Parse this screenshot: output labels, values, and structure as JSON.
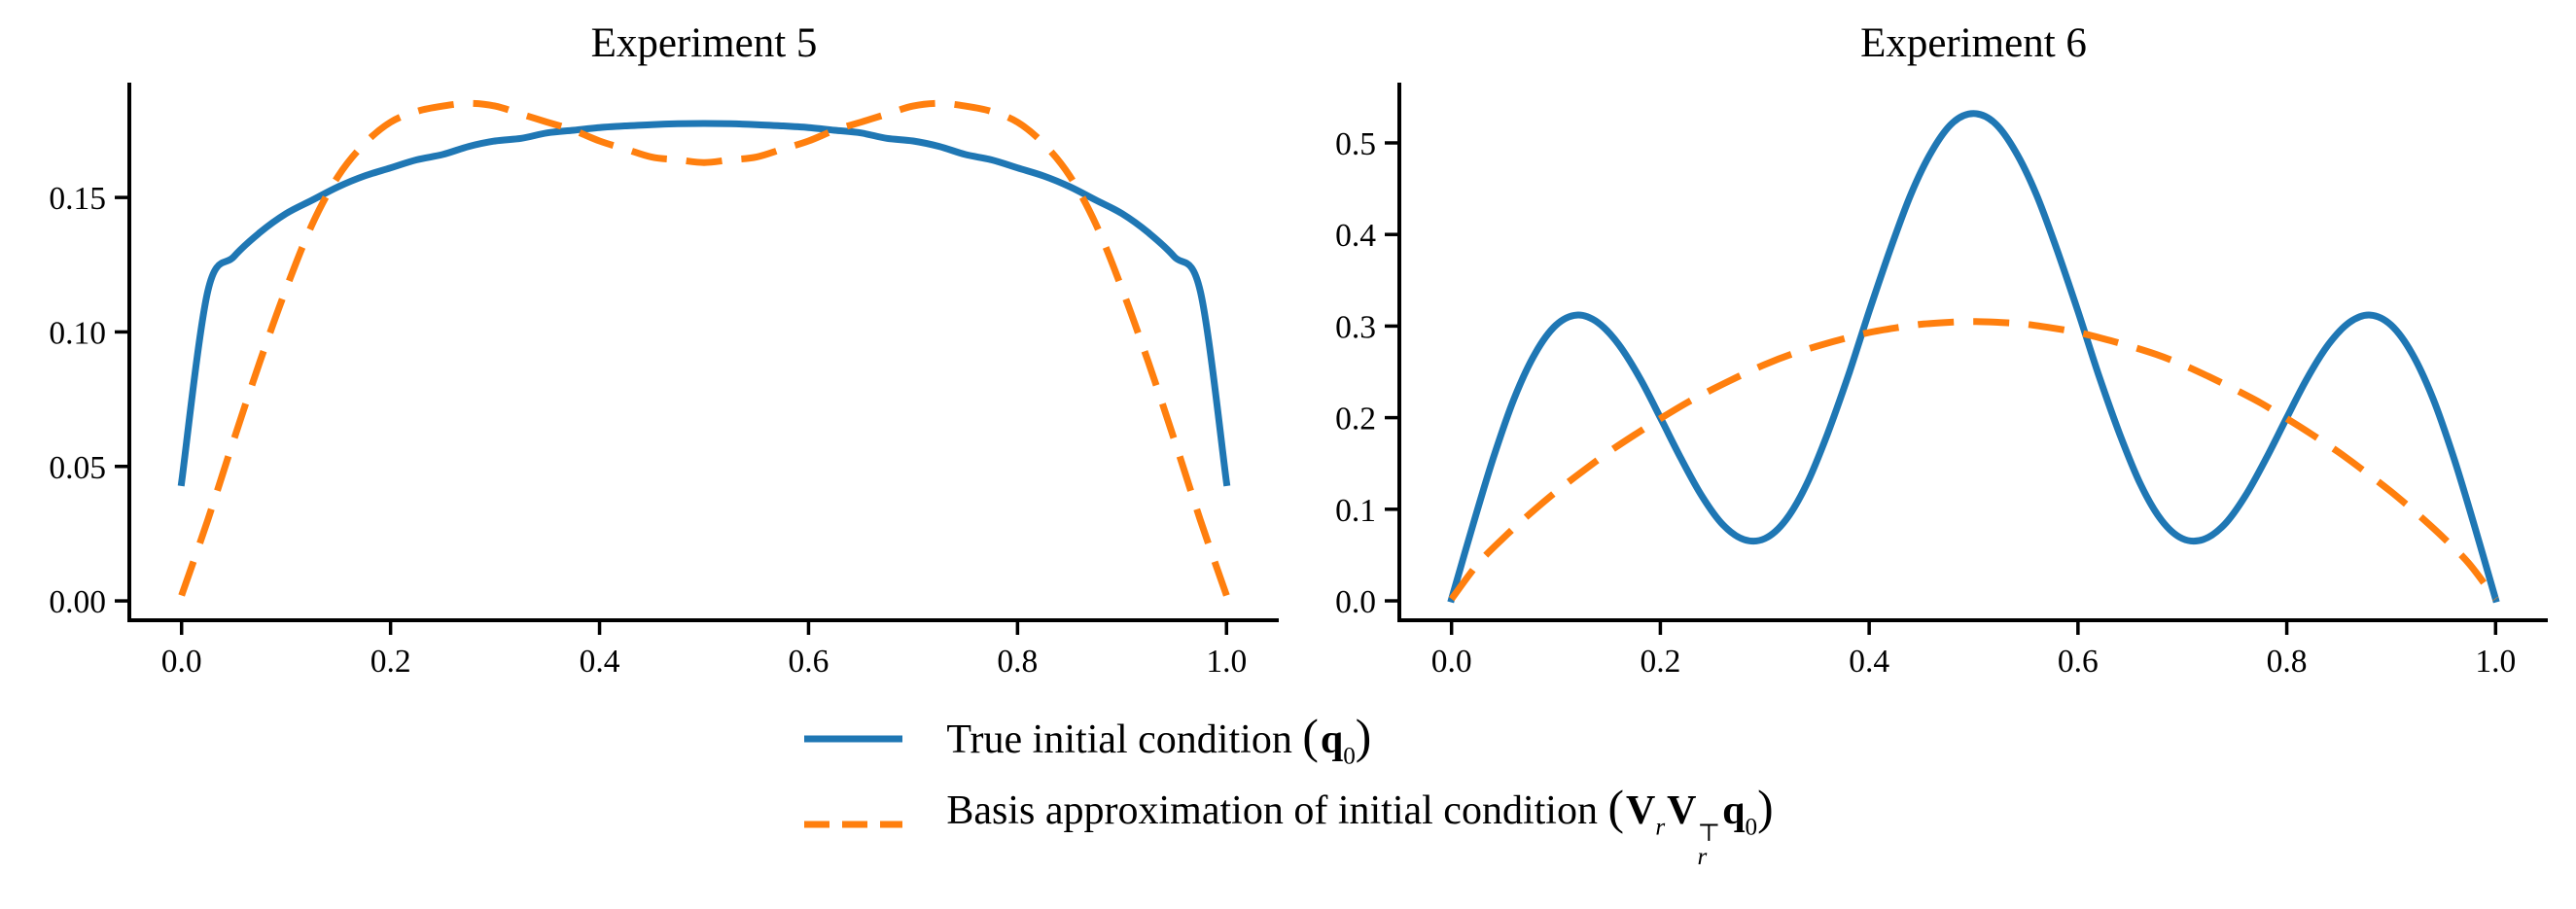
{
  "background": "#ffffff",
  "colors": {
    "true_line": "#1f77b4",
    "basis_line": "#ff7f0e",
    "axis": "#000000",
    "text": "#000000"
  },
  "legend": {
    "items": [
      {
        "id": "true-initial-condition",
        "line_style": "solid",
        "color": "#1f77b4",
        "text_prefix": "True initial condition ",
        "open_paren": "(",
        "close_paren": ")",
        "terms": [
          {
            "base": "q",
            "sub": "0"
          }
        ]
      },
      {
        "id": "basis-approximation",
        "line_style": "dashed",
        "color": "#ff7f0e",
        "text_prefix": "Basis approximation of initial condition ",
        "open_paren": "(",
        "close_paren": ")",
        "terms": [
          {
            "base": "V",
            "sub": "r"
          },
          {
            "base": "V",
            "sub": "r",
            "sup": "⊤"
          },
          {
            "base": "q",
            "sub": "0"
          }
        ]
      }
    ]
  },
  "chart_data": [
    {
      "type": "line",
      "title": "Experiment 5",
      "xlabel": "",
      "ylabel": "",
      "grid": false,
      "xlim": [
        -0.05,
        1.05
      ],
      "ylim": [
        -0.0072,
        0.1927
      ],
      "xtick_vals": [
        0.0,
        0.2,
        0.4,
        0.6,
        0.8,
        1.0
      ],
      "xtick_labels": [
        "0.0",
        "0.2",
        "0.4",
        "0.6",
        "0.8",
        "1.0"
      ],
      "ytick_vals": [
        0.0,
        0.05,
        0.1,
        0.15
      ],
      "ytick_labels": [
        "0.00",
        "0.05",
        "0.10",
        "0.15"
      ],
      "series": [
        {
          "name": "True initial condition (q0)",
          "color": "#1f77b4",
          "style": "solid",
          "x": [
            0,
            0.025,
            0.05,
            0.075,
            0.1,
            0.125,
            0.15,
            0.175,
            0.2,
            0.225,
            0.25,
            0.275,
            0.3,
            0.325,
            0.35,
            0.375,
            0.4,
            0.425,
            0.45,
            0.475,
            0.5,
            0.525,
            0.55,
            0.575,
            0.6,
            0.625,
            0.65,
            0.675,
            0.7,
            0.725,
            0.75,
            0.775,
            0.8,
            0.825,
            0.85,
            0.875,
            0.9,
            0.925,
            0.95,
            0.975,
            1
          ],
          "y": [
            0.044,
            0.115,
            0.128,
            0.137,
            0.144,
            0.149,
            0.154,
            0.158,
            0.161,
            0.164,
            0.166,
            0.169,
            0.171,
            0.172,
            0.174,
            0.175,
            0.176,
            0.1766,
            0.1771,
            0.1774,
            0.1775,
            0.1774,
            0.1771,
            0.1766,
            0.176,
            0.175,
            0.174,
            0.172,
            0.171,
            0.169,
            0.166,
            0.164,
            0.161,
            0.158,
            0.154,
            0.149,
            0.144,
            0.137,
            0.128,
            0.115,
            0.044
          ]
        },
        {
          "name": "Basis approximation of initial condition (Vr Vr^T q0)",
          "color": "#ff7f0e",
          "style": "dashed",
          "x": [
            0,
            0.025,
            0.05,
            0.075,
            0.1,
            0.125,
            0.15,
            0.175,
            0.2,
            0.225,
            0.25,
            0.275,
            0.3,
            0.325,
            0.35,
            0.375,
            0.4,
            0.425,
            0.45,
            0.475,
            0.5,
            0.525,
            0.55,
            0.575,
            0.6,
            0.625,
            0.65,
            0.675,
            0.7,
            0.725,
            0.75,
            0.775,
            0.8,
            0.825,
            0.85,
            0.875,
            0.9,
            0.925,
            0.95,
            0.975,
            1
          ],
          "y": [
            0.002,
            0.03,
            0.06,
            0.089,
            0.116,
            0.14,
            0.158,
            0.17,
            0.178,
            0.182,
            0.184,
            0.185,
            0.184,
            0.181,
            0.178,
            0.175,
            0.171,
            0.168,
            0.165,
            0.164,
            0.163,
            0.164,
            0.165,
            0.168,
            0.171,
            0.175,
            0.178,
            0.181,
            0.184,
            0.185,
            0.184,
            0.182,
            0.178,
            0.17,
            0.158,
            0.14,
            0.116,
            0.089,
            0.06,
            0.03,
            0.002
          ]
        }
      ]
    },
    {
      "type": "line",
      "title": "Experiment 6",
      "xlabel": "",
      "ylabel": "",
      "grid": false,
      "xlim": [
        -0.05,
        1.05
      ],
      "ylim": [
        -0.0212,
        0.5658
      ],
      "xtick_vals": [
        0.0,
        0.2,
        0.4,
        0.6,
        0.8,
        1.0
      ],
      "xtick_labels": [
        "0.0",
        "0.2",
        "0.4",
        "0.6",
        "0.8",
        "1.0"
      ],
      "ytick_vals": [
        0.0,
        0.1,
        0.2,
        0.3,
        0.4,
        0.5
      ],
      "ytick_labels": [
        "0.0",
        "0.1",
        "0.2",
        "0.3",
        "0.4",
        "0.5"
      ],
      "series": [
        {
          "name": "True initial condition (q0)",
          "color": "#1f77b4",
          "style": "solid",
          "x": [
            0,
            0.02,
            0.04,
            0.06,
            0.08,
            0.1,
            0.12,
            0.14,
            0.16,
            0.18,
            0.2,
            0.22,
            0.24,
            0.26,
            0.28,
            0.3,
            0.32,
            0.34,
            0.36,
            0.38,
            0.4,
            0.42,
            0.44,
            0.46,
            0.48,
            0.5,
            0.52,
            0.54,
            0.56,
            0.58,
            0.6,
            0.62,
            0.64,
            0.66,
            0.68,
            0.7,
            0.72,
            0.74,
            0.76,
            0.78,
            0.8,
            0.82,
            0.84,
            0.86,
            0.88,
            0.9,
            0.92,
            0.94,
            0.96,
            0.98,
            1
          ],
          "y": [
            0.002,
            0.081,
            0.156,
            0.221,
            0.27,
            0.301,
            0.312,
            0.304,
            0.28,
            0.244,
            0.2,
            0.155,
            0.114,
            0.083,
            0.067,
            0.068,
            0.088,
            0.127,
            0.182,
            0.246,
            0.316,
            0.383,
            0.444,
            0.491,
            0.522,
            0.532,
            0.522,
            0.491,
            0.444,
            0.383,
            0.316,
            0.246,
            0.182,
            0.127,
            0.088,
            0.068,
            0.067,
            0.083,
            0.114,
            0.155,
            0.2,
            0.244,
            0.28,
            0.304,
            0.312,
            0.301,
            0.27,
            0.221,
            0.156,
            0.081,
            0.002
          ]
        },
        {
          "name": "Basis approximation of initial condition (Vr Vr^T q0)",
          "color": "#ff7f0e",
          "style": "dashed",
          "x": [
            0,
            0.025,
            0.05,
            0.075,
            0.1,
            0.125,
            0.15,
            0.175,
            0.2,
            0.225,
            0.25,
            0.275,
            0.3,
            0.325,
            0.35,
            0.375,
            0.4,
            0.425,
            0.45,
            0.475,
            0.5,
            0.525,
            0.55,
            0.575,
            0.6,
            0.625,
            0.65,
            0.675,
            0.7,
            0.725,
            0.75,
            0.775,
            0.8,
            0.825,
            0.85,
            0.875,
            0.9,
            0.925,
            0.95,
            0.975,
            1
          ],
          "y": [
            0.002,
            0.04,
            0.069,
            0.095,
            0.119,
            0.141,
            0.162,
            0.181,
            0.199,
            0.216,
            0.231,
            0.245,
            0.258,
            0.269,
            0.278,
            0.286,
            0.293,
            0.298,
            0.302,
            0.304,
            0.305,
            0.304,
            0.302,
            0.298,
            0.293,
            0.286,
            0.278,
            0.269,
            0.258,
            0.245,
            0.231,
            0.216,
            0.199,
            0.181,
            0.162,
            0.141,
            0.119,
            0.095,
            0.069,
            0.04,
            0.002
          ]
        }
      ]
    }
  ]
}
